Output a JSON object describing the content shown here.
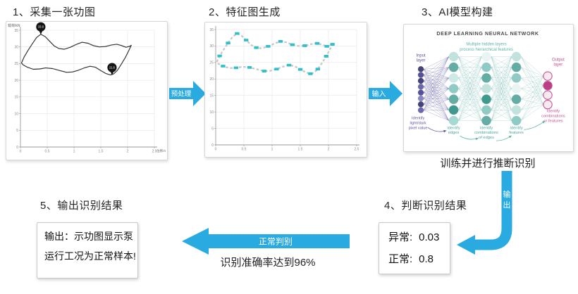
{
  "colors": {
    "arrow_blue": "#29abe2",
    "marker_cyan": "#2fc0cc",
    "grid": "#e4e4e4",
    "axis": "#9a9a9a",
    "curve": "#2f2f2f",
    "trail_gray": "#c7c7c7"
  },
  "steps": {
    "s1": {
      "title": "1、采集一张功图"
    },
    "s2": {
      "title": "2、特征图生成"
    },
    "s3": {
      "title": "3、AI模型构建"
    },
    "s4": {
      "title": "4、判断识别结果"
    },
    "s5": {
      "title": "5、输出识别结果"
    }
  },
  "arrows": {
    "preprocess": "预处理",
    "input": "输入",
    "output": "输出",
    "normal_judge": "正常判别",
    "train_note": "训练并进行推断识别",
    "accuracy_note": "识别准确率达到96%"
  },
  "result_box": {
    "abnormal_label": "异常:",
    "abnormal_value": "0.03",
    "normal_label": "正常:",
    "normal_value": "0.8"
  },
  "output_box": {
    "line1": "输出：示功图显示泵",
    "line2": "运行工况为正常样本!"
  },
  "chart_data": [
    {
      "type": "line",
      "title": "",
      "xlabel": "位移/m",
      "ylabel": "载荷/kN",
      "xlim": [
        0,
        2.5
      ],
      "ylim": [
        0,
        35
      ],
      "xticks": [
        0,
        0.5,
        1,
        1.5,
        2,
        2.5
      ],
      "yticks": [
        0,
        5,
        10,
        15,
        20,
        25,
        30,
        35
      ],
      "grid": true,
      "loop": [
        [
          0.02,
          25.2
        ],
        [
          0.07,
          27.0
        ],
        [
          0.14,
          28.9
        ],
        [
          0.22,
          30.9
        ],
        [
          0.3,
          32.8
        ],
        [
          0.38,
          33.8
        ],
        [
          0.46,
          33.1
        ],
        [
          0.54,
          31.8
        ],
        [
          0.63,
          30.3
        ],
        [
          0.72,
          29.5
        ],
        [
          0.82,
          29.3
        ],
        [
          0.93,
          29.9
        ],
        [
          1.05,
          30.8
        ],
        [
          1.15,
          31.4
        ],
        [
          1.26,
          31.1
        ],
        [
          1.36,
          30.4
        ],
        [
          1.47,
          30.0
        ],
        [
          1.58,
          30.1
        ],
        [
          1.7,
          30.6
        ],
        [
          1.8,
          30.8
        ],
        [
          1.89,
          30.4
        ],
        [
          1.97,
          29.9
        ],
        [
          2.04,
          30.2
        ],
        [
          2.07,
          30.5
        ],
        [
          2.02,
          28.8
        ],
        [
          1.96,
          26.9
        ],
        [
          1.89,
          25.0
        ],
        [
          1.81,
          23.0
        ],
        [
          1.74,
          21.9
        ],
        [
          1.68,
          21.6
        ],
        [
          1.6,
          22.0
        ],
        [
          1.5,
          22.9
        ],
        [
          1.4,
          23.9
        ],
        [
          1.3,
          24.2
        ],
        [
          1.19,
          23.7
        ],
        [
          1.08,
          23.0
        ],
        [
          0.97,
          22.5
        ],
        [
          0.86,
          22.4
        ],
        [
          0.74,
          22.9
        ],
        [
          0.6,
          23.5
        ],
        [
          0.47,
          23.7
        ],
        [
          0.36,
          23.4
        ],
        [
          0.24,
          23.3
        ],
        [
          0.13,
          23.9
        ],
        [
          0.05,
          24.6
        ]
      ],
      "max_marker": {
        "x": 0.38,
        "y": 33.8,
        "label": "33.8"
      },
      "min_marker": {
        "x": 1.71,
        "y": 21.6,
        "label": "21.6"
      }
    },
    {
      "type": "scatter",
      "title": "",
      "xlabel": "",
      "ylabel": "",
      "xlim": [
        0,
        2.5
      ],
      "ylim": [
        0,
        35
      ],
      "xticks": [
        0,
        0.5,
        1,
        1.5,
        2,
        2.5
      ],
      "yticks": [
        0,
        5,
        10,
        15,
        20,
        25,
        30,
        35
      ],
      "grid": true,
      "marker_color": "#2fc0cc"
    }
  ],
  "nn": {
    "title": "DEEP LEARNING NEURAL NETWORK",
    "title_color": "#4a4a4a",
    "subtitle": [
      "Multiple hidden layers",
      "process hierarchical features"
    ],
    "subtitle_color": "#5fb3aa",
    "input_label": [
      "Input",
      "layer"
    ],
    "input_color": "#5b55a0",
    "output_label": [
      "Output",
      "layer"
    ],
    "output_color": "#c2528f",
    "annotations": [
      {
        "lines": [
          "Identify",
          "light/dark",
          "pixel value"
        ],
        "color": "#5b55a0"
      },
      {
        "lines": [
          "Identify",
          "edges"
        ],
        "color": "#4da79d"
      },
      {
        "lines": [
          "Identify",
          "combinations",
          "of edges"
        ],
        "color": "#4da79d"
      },
      {
        "lines": [
          "Identify",
          "features"
        ],
        "color": "#4da79d"
      },
      {
        "lines": [
          "Identify",
          "combinations",
          "or features"
        ],
        "color": "#c2528f"
      }
    ],
    "layer_colors": {
      "input": [
        "#454379",
        "#55529b",
        "#454379",
        "#6b68ae",
        "#55529b",
        "#8a87c0",
        "#454379",
        "#6b68ae"
      ],
      "hidden1": [
        "#c2e2de",
        "#63ada4",
        "#cfe9e6",
        "#8fcbc4",
        "#63ada4",
        "#3f998f",
        "#a7d8d2"
      ],
      "hidden2": [
        "#e8f5f3",
        "#8fcbc4",
        "#63ada4",
        "#c2e2de",
        "#3f998f",
        "#8fcbc4",
        "#63ada4"
      ],
      "hidden3": [
        "#c2e2de",
        "#63ada4",
        "#8fcbc4",
        "#e8f5f3",
        "#63ada4",
        "#c2e2de",
        "#8fcbc4"
      ],
      "output_fill": [
        "#f9eaf2",
        "#bd3d85",
        "#f9eaf2",
        "#f9eaf2"
      ],
      "output_stroke": "#c0568f",
      "link_purple": "#514f9a",
      "link_teal": "#6ab4ab"
    }
  }
}
